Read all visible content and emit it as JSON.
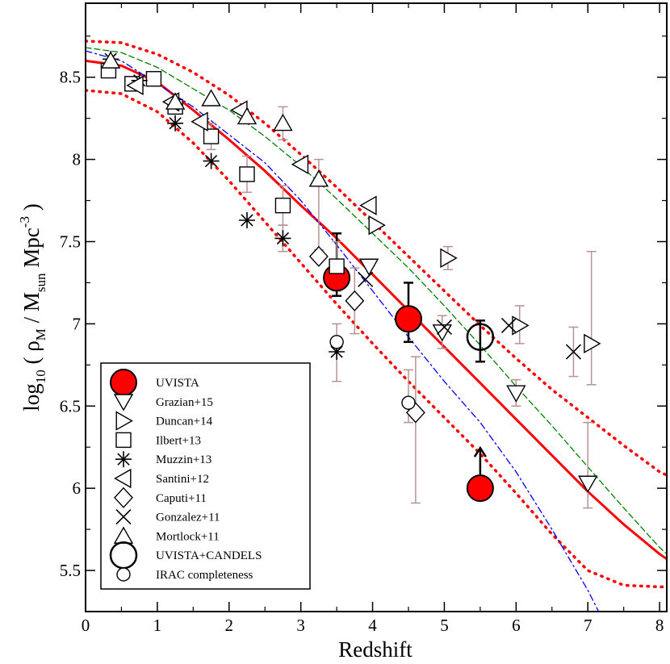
{
  "chart_data": {
    "type": "scatter",
    "title": "",
    "xlabel": "Redshift",
    "ylabel": {
      "prefix": "log",
      "prefix_sub": "10",
      "open": " ( ",
      "rho": "ρ",
      "rho_sub": "M",
      "slash": " / ",
      "msun": "M",
      "msun_sub": "sun",
      "mpc": " Mpc",
      "mpc_sup": "-3",
      "close": " )"
    },
    "xlim": [
      0,
      8.1
    ],
    "ylim": [
      5.25,
      8.95
    ],
    "x_ticks": [
      0,
      1,
      2,
      3,
      4,
      5,
      6,
      7,
      8
    ],
    "y_ticks": [
      5.5,
      6,
      6.5,
      7,
      7.5,
      8,
      8.5
    ],
    "x_tick_labels": [
      "0",
      "1",
      "2",
      "3",
      "4",
      "5",
      "6",
      "7",
      "8"
    ],
    "y_tick_labels": [
      "5.5",
      "6",
      "6.5",
      "7",
      "7.5",
      "8",
      "8.5"
    ],
    "legend_position": "bottom-left",
    "colors": {
      "red": "#ff0000",
      "green": "#008000",
      "blue": "#0000ff",
      "error": "#b89292",
      "black": "#000000"
    },
    "curves": [
      {
        "name": "model-red-solid",
        "style": "solid",
        "color": "#ff0000",
        "x": [
          0,
          0.5,
          1,
          1.5,
          2,
          2.5,
          3,
          3.5,
          4,
          4.5,
          5,
          5.5,
          6,
          6.5,
          7,
          7.5,
          8,
          8.1
        ],
        "y": [
          8.6,
          8.57,
          8.47,
          8.3,
          8.12,
          7.93,
          7.72,
          7.52,
          7.3,
          7.08,
          6.86,
          6.64,
          6.42,
          6.2,
          5.98,
          5.78,
          5.6,
          5.57
        ]
      },
      {
        "name": "model-red-dotted-upper",
        "style": "dotted",
        "color": "#ff0000",
        "x": [
          0,
          0.5,
          1,
          1.5,
          2,
          2.5,
          3,
          3.5,
          4,
          4.5,
          5,
          5.5,
          6,
          6.5,
          7,
          7.5,
          8,
          8.1
        ],
        "y": [
          8.72,
          8.71,
          8.64,
          8.53,
          8.39,
          8.22,
          8.03,
          7.83,
          7.62,
          7.41,
          7.2,
          6.99,
          6.79,
          6.6,
          6.43,
          6.26,
          6.1,
          6.08
        ]
      },
      {
        "name": "model-red-dotted-lower",
        "style": "dotted",
        "color": "#ff0000",
        "x": [
          0,
          0.5,
          1,
          1.5,
          2,
          2.5,
          3,
          3.5,
          4,
          4.5,
          5,
          5.5,
          6,
          6.5,
          7,
          7.5,
          8,
          8.1
        ],
        "y": [
          8.42,
          8.4,
          8.29,
          8.1,
          7.87,
          7.62,
          7.37,
          7.12,
          6.88,
          6.65,
          6.43,
          6.21,
          5.97,
          5.72,
          5.5,
          5.41,
          5.4,
          5.4
        ]
      },
      {
        "name": "model-green-dashed",
        "style": "dashed",
        "color": "#008000",
        "x": [
          0,
          0.5,
          1,
          1.5,
          2,
          2.5,
          3,
          3.5,
          4,
          4.5,
          5,
          5.5,
          6,
          6.5,
          7,
          7.5,
          8,
          8.1
        ],
        "y": [
          8.68,
          8.65,
          8.56,
          8.43,
          8.3,
          8.14,
          7.96,
          7.76,
          7.55,
          7.34,
          7.11,
          6.87,
          6.62,
          6.38,
          6.13,
          5.88,
          5.64,
          5.6
        ]
      },
      {
        "name": "model-blue-dashdot",
        "style": "dashdot",
        "color": "#0000ff",
        "x": [
          0,
          0.5,
          1,
          1.5,
          2,
          2.5,
          3,
          3.5,
          4,
          4.5,
          5,
          5.5,
          6,
          6.5,
          7,
          7.15
        ],
        "y": [
          8.66,
          8.6,
          8.46,
          8.32,
          8.15,
          7.98,
          7.75,
          7.48,
          7.2,
          6.92,
          6.65,
          6.4,
          6.1,
          5.75,
          5.38,
          5.25
        ]
      }
    ],
    "series": [
      {
        "name": "UVISTA",
        "marker": "circle-filled",
        "points": [
          {
            "x": 3.5,
            "y": 7.28,
            "lo": 7.17,
            "hi": 7.55
          },
          {
            "x": 4.5,
            "y": 7.03,
            "lo": 6.89,
            "hi": 7.25
          },
          {
            "x": 5.5,
            "y": 6.0,
            "arrow": "up"
          }
        ]
      },
      {
        "name": "Grazian+15",
        "marker": "triangle-down",
        "points": [
          {
            "x": 3.95,
            "y": 7.35
          },
          {
            "x": 4.97,
            "y": 6.95,
            "lo": 6.85,
            "hi": 7.05
          },
          {
            "x": 6.0,
            "y": 6.58,
            "lo": 6.5,
            "hi": 6.66
          },
          {
            "x": 7.0,
            "y": 6.03,
            "lo": 5.88,
            "hi": 6.4
          }
        ]
      },
      {
        "name": "Duncan+14",
        "marker": "triangle-right",
        "points": [
          {
            "x": 4.05,
            "y": 7.6
          },
          {
            "x": 5.05,
            "y": 7.4,
            "lo": 7.33,
            "hi": 7.47
          },
          {
            "x": 6.05,
            "y": 6.99,
            "lo": 6.88,
            "hi": 7.11
          },
          {
            "x": 7.05,
            "y": 6.88,
            "lo": 6.63,
            "hi": 7.44
          }
        ]
      },
      {
        "name": "Ilbert+13",
        "marker": "square",
        "points": [
          {
            "x": 0.32,
            "y": 8.54
          },
          {
            "x": 0.65,
            "y": 8.46
          },
          {
            "x": 0.95,
            "y": 8.49
          },
          {
            "x": 1.25,
            "y": 8.32
          },
          {
            "x": 1.75,
            "y": 8.14,
            "lo": 8.06,
            "hi": 8.22
          },
          {
            "x": 2.25,
            "y": 7.91,
            "lo": 7.8,
            "hi": 8.02
          },
          {
            "x": 2.75,
            "y": 7.72,
            "lo": 7.6,
            "hi": 7.84
          },
          {
            "x": 3.5,
            "y": 7.35,
            "lo": 7.2,
            "hi": 7.5
          }
        ]
      },
      {
        "name": "Muzzin+13",
        "marker": "asterisk",
        "points": [
          {
            "x": 0.35,
            "y": 8.61
          },
          {
            "x": 0.75,
            "y": 8.48
          },
          {
            "x": 1.25,
            "y": 8.22
          },
          {
            "x": 1.75,
            "y": 7.99
          },
          {
            "x": 2.25,
            "y": 7.63
          },
          {
            "x": 2.75,
            "y": 7.52,
            "lo": 7.44,
            "hi": 7.6
          },
          {
            "x": 3.5,
            "y": 6.83,
            "lo": 6.65,
            "hi": 7.0
          }
        ]
      },
      {
        "name": "Santini+12",
        "marker": "triangle-left",
        "points": [
          {
            "x": 0.7,
            "y": 8.45
          },
          {
            "x": 1.2,
            "y": 8.35
          },
          {
            "x": 1.6,
            "y": 8.23
          },
          {
            "x": 2.15,
            "y": 8.3
          },
          {
            "x": 3.0,
            "y": 7.97
          },
          {
            "x": 3.95,
            "y": 7.72
          }
        ]
      },
      {
        "name": "Caputi+11",
        "marker": "diamond",
        "points": [
          {
            "x": 3.25,
            "y": 7.41
          },
          {
            "x": 3.75,
            "y": 7.14,
            "lo": 6.94,
            "hi": 7.34
          },
          {
            "x": 4.6,
            "y": 6.46,
            "lo": 5.91,
            "hi": 6.8
          }
        ]
      },
      {
        "name": "Gonzalez+11",
        "marker": "cross",
        "points": [
          {
            "x": 3.9,
            "y": 7.27
          },
          {
            "x": 5.0,
            "y": 6.98
          },
          {
            "x": 5.9,
            "y": 6.99
          },
          {
            "x": 6.8,
            "y": 6.83,
            "lo": 6.68,
            "hi": 6.98
          }
        ]
      },
      {
        "name": "Mortlock+11",
        "marker": "triangle-up",
        "points": [
          {
            "x": 0.35,
            "y": 8.6
          },
          {
            "x": 1.25,
            "y": 8.35
          },
          {
            "x": 1.75,
            "y": 8.37
          },
          {
            "x": 2.25,
            "y": 8.26
          },
          {
            "x": 2.75,
            "y": 8.22,
            "lo": 8.12,
            "hi": 8.32
          },
          {
            "x": 3.25,
            "y": 7.88,
            "lo": 7.45,
            "hi": 8.0
          }
        ]
      },
      {
        "name": "UVISTA+CANDELS",
        "marker": "circle-large-open",
        "points": [
          {
            "x": 5.5,
            "y": 6.92,
            "lo": 6.77,
            "hi": 7.02
          }
        ]
      },
      {
        "name": "IRAC completeness",
        "marker": "circle-small-open",
        "points": [
          {
            "x": 3.5,
            "y": 6.89
          },
          {
            "x": 4.5,
            "y": 6.52,
            "lo": 6.4,
            "hi": 6.72
          }
        ]
      }
    ],
    "legend": [
      "UVISTA",
      "Grazian+15",
      "Duncan+14",
      "Ilbert+13",
      "Muzzin+13",
      "Santini+12",
      "Caputi+11",
      "Gonzalez+11",
      "Mortlock+11",
      "UVISTA+CANDELS",
      "IRAC completeness"
    ]
  }
}
